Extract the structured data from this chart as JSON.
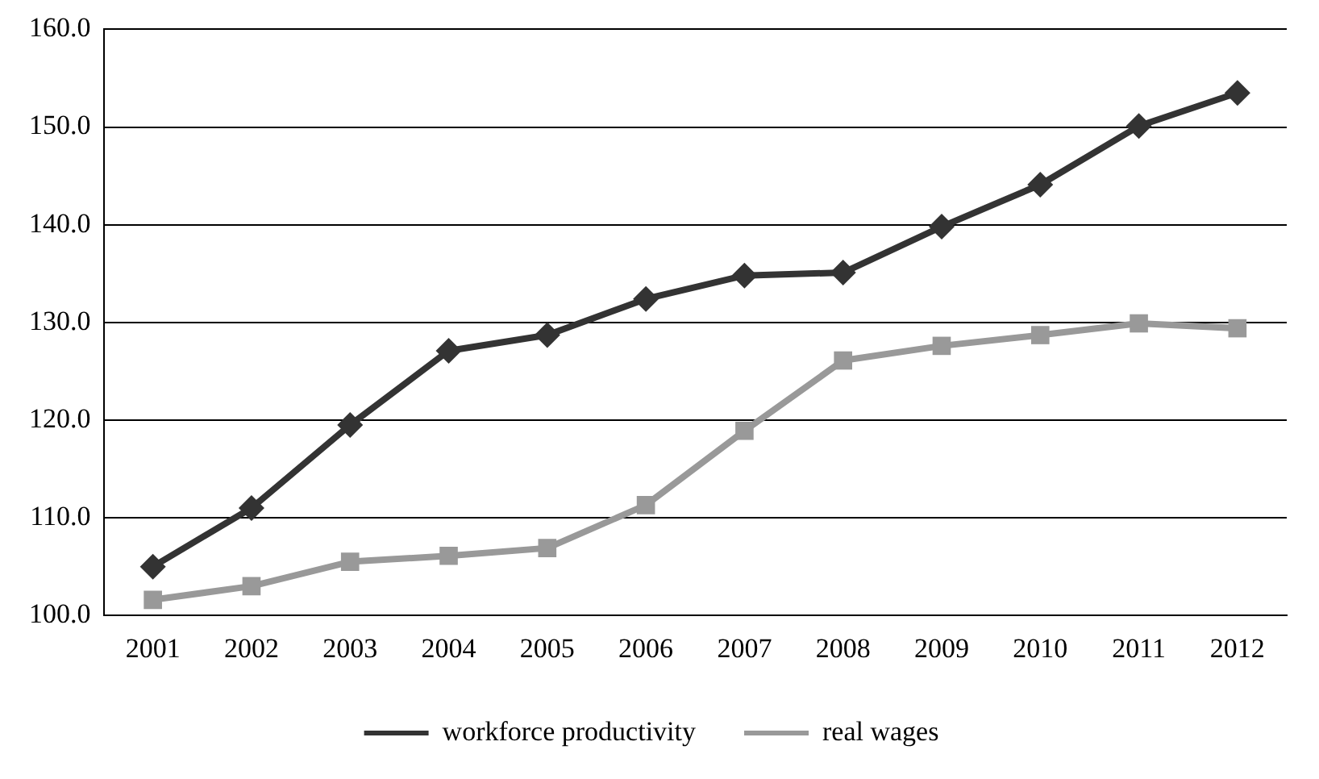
{
  "chart_data": {
    "type": "line",
    "categories": [
      "2001",
      "2002",
      "2003",
      "2004",
      "2005",
      "2006",
      "2007",
      "2008",
      "2009",
      "2010",
      "2011",
      "2012"
    ],
    "series": [
      {
        "name": "workforce productivity",
        "color": "#333333",
        "marker": "diamond",
        "values": [
          105.0,
          111.0,
          119.5,
          127.1,
          128.7,
          132.4,
          134.8,
          135.1,
          139.8,
          144.1,
          150.1,
          153.5
        ]
      },
      {
        "name": "real wages",
        "color": "#999999",
        "marker": "square",
        "values": [
          101.6,
          103.0,
          105.5,
          106.1,
          106.9,
          111.3,
          118.9,
          126.1,
          127.6,
          128.7,
          129.9,
          129.4
        ]
      }
    ],
    "ylim": [
      100,
      160
    ],
    "yticks": [
      {
        "value": 100,
        "label": "100.0"
      },
      {
        "value": 110,
        "label": "110.0"
      },
      {
        "value": 120,
        "label": "120.0"
      },
      {
        "value": 130,
        "label": "130.0"
      },
      {
        "value": 140,
        "label": "140.0"
      },
      {
        "value": 150,
        "label": "150.0"
      },
      {
        "value": 160,
        "label": "160.0"
      }
    ],
    "grid": "y",
    "legend": "bottom",
    "line_style": "solid"
  }
}
